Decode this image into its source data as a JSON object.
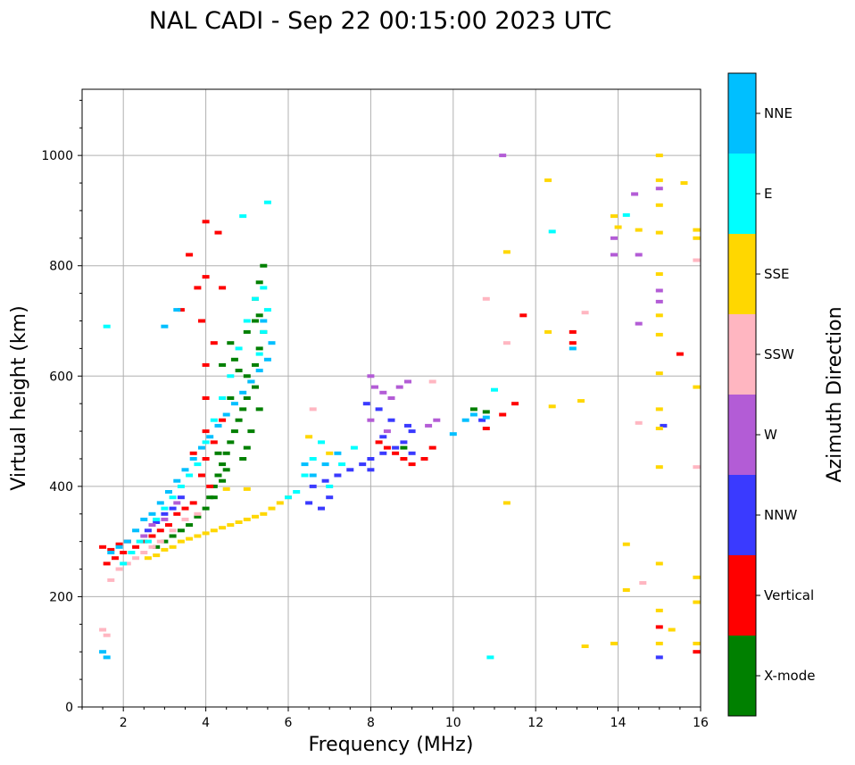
{
  "chart_data": {
    "type": "scatter",
    "title": "NAL CADI - Sep 22 00:15:00 2023 UTC",
    "xlabel": "Frequency (MHz)",
    "ylabel": "Virtual height (km)",
    "xlim": [
      1,
      16
    ],
    "ylim": [
      0,
      1120
    ],
    "xticks": [
      2,
      4,
      6,
      8,
      10,
      12,
      14,
      16
    ],
    "yticks": [
      0,
      200,
      400,
      600,
      800,
      1000
    ],
    "grid": true,
    "colorbar": {
      "label": "Azimuth Direction",
      "categories": [
        "X-mode",
        "Vertical",
        "NNW",
        "W",
        "SSW",
        "SSE",
        "E",
        "NNE"
      ],
      "colors": [
        "#008000",
        "#ff0000",
        "#3a3aff",
        "#b35cd6",
        "#ffb6c1",
        "#ffd700",
        "#00ffff",
        "#00bfff"
      ]
    },
    "series": [
      {
        "name": "X-mode",
        "color": "#008000",
        "points": [
          [
            2.8,
            290
          ],
          [
            3.0,
            300
          ],
          [
            3.2,
            310
          ],
          [
            3.4,
            320
          ],
          [
            3.6,
            330
          ],
          [
            3.8,
            345
          ],
          [
            4.0,
            360
          ],
          [
            4.1,
            380
          ],
          [
            4.2,
            400
          ],
          [
            4.3,
            420
          ],
          [
            4.4,
            440
          ],
          [
            4.5,
            460
          ],
          [
            4.6,
            480
          ],
          [
            4.7,
            500
          ],
          [
            4.8,
            520
          ],
          [
            4.9,
            540
          ],
          [
            5.0,
            560
          ],
          [
            5.1,
            590
          ],
          [
            5.2,
            620
          ],
          [
            5.3,
            650
          ],
          [
            5.4,
            680
          ],
          [
            5.3,
            710
          ],
          [
            5.2,
            740
          ],
          [
            5.3,
            770
          ],
          [
            5.4,
            800
          ],
          [
            4.9,
            450
          ],
          [
            5.0,
            470
          ],
          [
            4.5,
            430
          ],
          [
            4.4,
            410
          ],
          [
            4.2,
            380
          ],
          [
            5.0,
            600
          ],
          [
            5.2,
            580
          ],
          [
            4.8,
            610
          ],
          [
            4.6,
            560
          ],
          [
            5.3,
            540
          ],
          [
            5.1,
            500
          ],
          [
            4.3,
            460
          ],
          [
            4.7,
            630
          ],
          [
            5.0,
            680
          ],
          [
            5.2,
            700
          ],
          [
            4.4,
            620
          ],
          [
            4.6,
            660
          ],
          [
            10.5,
            540
          ],
          [
            10.8,
            535
          ],
          [
            8.8,
            470
          ]
        ]
      },
      {
        "name": "Vertical",
        "color": "#ff0000",
        "points": [
          [
            1.5,
            290
          ],
          [
            1.7,
            285
          ],
          [
            1.9,
            295
          ],
          [
            2.1,
            300
          ],
          [
            2.3,
            290
          ],
          [
            2.5,
            300
          ],
          [
            2.7,
            310
          ],
          [
            2.9,
            320
          ],
          [
            3.1,
            330
          ],
          [
            3.3,
            350
          ],
          [
            3.5,
            360
          ],
          [
            3.7,
            370
          ],
          [
            3.9,
            420
          ],
          [
            4.0,
            450
          ],
          [
            4.0,
            500
          ],
          [
            4.0,
            560
          ],
          [
            4.0,
            620
          ],
          [
            3.9,
            700
          ],
          [
            4.0,
            780
          ],
          [
            4.0,
            880
          ],
          [
            4.3,
            860
          ],
          [
            4.4,
            760
          ],
          [
            4.2,
            660
          ],
          [
            3.8,
            760
          ],
          [
            3.6,
            820
          ],
          [
            3.4,
            720
          ],
          [
            3.7,
            460
          ],
          [
            4.2,
            480
          ],
          [
            4.4,
            520
          ],
          [
            4.1,
            400
          ],
          [
            1.6,
            260
          ],
          [
            1.8,
            270
          ],
          [
            2.0,
            280
          ],
          [
            8.4,
            470
          ],
          [
            8.6,
            460
          ],
          [
            8.8,
            450
          ],
          [
            9.0,
            440
          ],
          [
            9.3,
            450
          ],
          [
            9.5,
            470
          ],
          [
            8.2,
            480
          ],
          [
            10.8,
            505
          ],
          [
            11.2,
            530
          ],
          [
            11.5,
            550
          ],
          [
            11.7,
            710
          ],
          [
            12.9,
            660
          ],
          [
            12.9,
            680
          ],
          [
            15.0,
            145
          ],
          [
            15.9,
            100
          ],
          [
            15.5,
            640
          ]
        ]
      },
      {
        "name": "NNW",
        "color": "#3a3aff",
        "points": [
          [
            2.6,
            320
          ],
          [
            2.8,
            335
          ],
          [
            3.0,
            350
          ],
          [
            3.2,
            360
          ],
          [
            3.4,
            380
          ],
          [
            6.6,
            400
          ],
          [
            6.9,
            410
          ],
          [
            7.2,
            420
          ],
          [
            7.5,
            430
          ],
          [
            7.8,
            440
          ],
          [
            8.0,
            450
          ],
          [
            8.3,
            460
          ],
          [
            8.6,
            470
          ],
          [
            8.8,
            480
          ],
          [
            9.0,
            500
          ],
          [
            8.9,
            510
          ],
          [
            8.5,
            520
          ],
          [
            8.2,
            540
          ],
          [
            7.9,
            550
          ],
          [
            9.0,
            460
          ],
          [
            7.0,
            380
          ],
          [
            6.8,
            360
          ],
          [
            6.5,
            370
          ],
          [
            8.0,
            430
          ],
          [
            8.3,
            490
          ],
          [
            10.7,
            520
          ],
          [
            15.0,
            90
          ],
          [
            15.1,
            510
          ]
        ]
      },
      {
        "name": "W",
        "color": "#b35cd6",
        "points": [
          [
            2.5,
            310
          ],
          [
            2.7,
            330
          ],
          [
            3.0,
            340
          ],
          [
            3.3,
            370
          ],
          [
            8.0,
            600
          ],
          [
            8.1,
            580
          ],
          [
            8.3,
            570
          ],
          [
            8.5,
            560
          ],
          [
            8.7,
            580
          ],
          [
            8.9,
            590
          ],
          [
            8.0,
            520
          ],
          [
            8.4,
            500
          ],
          [
            9.4,
            510
          ],
          [
            9.6,
            520
          ],
          [
            11.2,
            1000
          ],
          [
            13.9,
            820
          ],
          [
            13.9,
            850
          ],
          [
            14.4,
            930
          ],
          [
            14.5,
            820
          ],
          [
            14.5,
            695
          ],
          [
            15.0,
            940
          ],
          [
            15.0,
            755
          ],
          [
            15.0,
            735
          ]
        ]
      },
      {
        "name": "SSW",
        "color": "#ffb6c1",
        "points": [
          [
            1.5,
            140
          ],
          [
            1.6,
            130
          ],
          [
            1.7,
            230
          ],
          [
            1.9,
            250
          ],
          [
            2.1,
            260
          ],
          [
            2.3,
            270
          ],
          [
            2.5,
            280
          ],
          [
            2.7,
            290
          ],
          [
            2.9,
            300
          ],
          [
            3.2,
            320
          ],
          [
            3.5,
            340
          ],
          [
            3.8,
            350
          ],
          [
            6.6,
            540
          ],
          [
            9.5,
            590
          ],
          [
            10.8,
            740
          ],
          [
            11.3,
            660
          ],
          [
            13.2,
            715
          ],
          [
            14.5,
            515
          ],
          [
            14.6,
            225
          ],
          [
            15.9,
            435
          ],
          [
            15.9,
            810
          ]
        ]
      },
      {
        "name": "SSE",
        "color": "#ffd700",
        "points": [
          [
            2.6,
            270
          ],
          [
            2.8,
            275
          ],
          [
            3.0,
            285
          ],
          [
            3.2,
            290
          ],
          [
            3.4,
            300
          ],
          [
            3.6,
            305
          ],
          [
            3.8,
            310
          ],
          [
            4.0,
            315
          ],
          [
            4.2,
            320
          ],
          [
            4.4,
            325
          ],
          [
            4.6,
            330
          ],
          [
            4.8,
            335
          ],
          [
            5.0,
            340
          ],
          [
            5.2,
            345
          ],
          [
            5.4,
            350
          ],
          [
            5.6,
            360
          ],
          [
            5.8,
            370
          ],
          [
            6.0,
            380
          ],
          [
            4.5,
            395
          ],
          [
            5.0,
            395
          ],
          [
            6.5,
            490
          ],
          [
            7.0,
            460
          ],
          [
            11.3,
            370
          ],
          [
            11.3,
            825
          ],
          [
            12.3,
            955
          ],
          [
            12.3,
            680
          ],
          [
            12.4,
            545
          ],
          [
            13.1,
            555
          ],
          [
            13.2,
            110
          ],
          [
            13.9,
            115
          ],
          [
            13.9,
            890
          ],
          [
            14.0,
            870
          ],
          [
            14.2,
            295
          ],
          [
            14.2,
            212
          ],
          [
            14.5,
            865
          ],
          [
            15.0,
            1000
          ],
          [
            15.0,
            955
          ],
          [
            15.0,
            910
          ],
          [
            15.0,
            860
          ],
          [
            15.0,
            785
          ],
          [
            15.0,
            710
          ],
          [
            15.0,
            675
          ],
          [
            15.0,
            605
          ],
          [
            15.0,
            540
          ],
          [
            15.0,
            505
          ],
          [
            15.0,
            435
          ],
          [
            15.0,
            260
          ],
          [
            15.0,
            175
          ],
          [
            15.0,
            115
          ],
          [
            15.3,
            140
          ],
          [
            15.6,
            950
          ],
          [
            15.9,
            865
          ],
          [
            15.9,
            850
          ],
          [
            15.9,
            580
          ],
          [
            15.9,
            235
          ],
          [
            15.9,
            190
          ],
          [
            15.9,
            115
          ]
        ]
      },
      {
        "name": "E",
        "color": "#00ffff",
        "points": [
          [
            1.6,
            690
          ],
          [
            2.0,
            260
          ],
          [
            2.2,
            280
          ],
          [
            2.4,
            300
          ],
          [
            2.6,
            300
          ],
          [
            2.8,
            340
          ],
          [
            3.0,
            360
          ],
          [
            3.2,
            380
          ],
          [
            3.4,
            400
          ],
          [
            3.6,
            420
          ],
          [
            3.8,
            440
          ],
          [
            4.0,
            480
          ],
          [
            4.2,
            520
          ],
          [
            4.4,
            560
          ],
          [
            4.6,
            600
          ],
          [
            4.8,
            650
          ],
          [
            5.0,
            700
          ],
          [
            5.2,
            740
          ],
          [
            5.4,
            760
          ],
          [
            5.5,
            720
          ],
          [
            5.4,
            680
          ],
          [
            5.3,
            640
          ],
          [
            4.9,
            890
          ],
          [
            5.5,
            915
          ],
          [
            6.0,
            380
          ],
          [
            6.2,
            390
          ],
          [
            6.4,
            420
          ],
          [
            6.6,
            450
          ],
          [
            6.8,
            480
          ],
          [
            7.0,
            400
          ],
          [
            7.3,
            440
          ],
          [
            7.6,
            470
          ],
          [
            10.9,
            90
          ],
          [
            11.0,
            575
          ],
          [
            12.4,
            862
          ],
          [
            14.2,
            892
          ]
        ]
      },
      {
        "name": "NNE",
        "color": "#00bfff",
        "points": [
          [
            1.5,
            100
          ],
          [
            1.6,
            90
          ],
          [
            1.7,
            280
          ],
          [
            1.9,
            290
          ],
          [
            2.1,
            300
          ],
          [
            2.3,
            320
          ],
          [
            2.5,
            340
          ],
          [
            2.7,
            350
          ],
          [
            2.9,
            370
          ],
          [
            3.1,
            390
          ],
          [
            3.3,
            410
          ],
          [
            3.5,
            430
          ],
          [
            3.7,
            450
          ],
          [
            3.9,
            470
          ],
          [
            4.1,
            490
          ],
          [
            4.3,
            510
          ],
          [
            4.5,
            530
          ],
          [
            4.7,
            550
          ],
          [
            4.9,
            570
          ],
          [
            5.1,
            590
          ],
          [
            5.3,
            610
          ],
          [
            5.5,
            630
          ],
          [
            5.6,
            660
          ],
          [
            5.4,
            700
          ],
          [
            3.0,
            690
          ],
          [
            3.3,
            720
          ],
          [
            6.4,
            440
          ],
          [
            6.6,
            420
          ],
          [
            6.9,
            440
          ],
          [
            7.2,
            460
          ],
          [
            10.0,
            495
          ],
          [
            10.3,
            520
          ],
          [
            10.5,
            530
          ],
          [
            10.8,
            525
          ],
          [
            12.9,
            650
          ]
        ]
      }
    ]
  }
}
